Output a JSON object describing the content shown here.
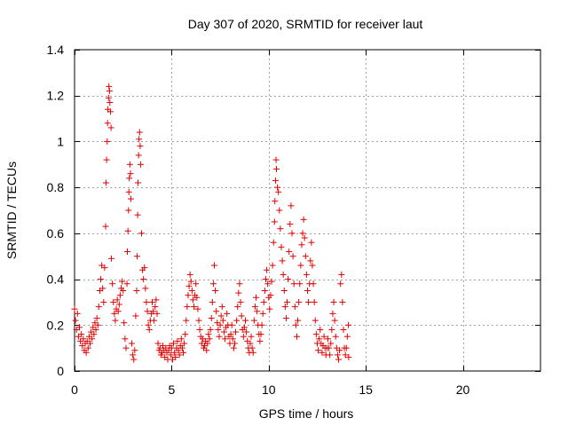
{
  "chart_data": {
    "type": "scatter",
    "title": "Day 307 of 2020, SRMTID for receiver laut",
    "xlabel": "GPS time / hours",
    "ylabel": "SRMTID / TECUs",
    "xlim": [
      0,
      24
    ],
    "ylim": [
      0,
      1.4
    ],
    "x_ticks": [
      0,
      5,
      10,
      15,
      20
    ],
    "x_tick_labels": [
      "0",
      "5",
      "10",
      "15",
      "20"
    ],
    "y_ticks": [
      0,
      0.2,
      0.4,
      0.6,
      0.8,
      1,
      1.2,
      1.4
    ],
    "y_tick_labels": [
      "0",
      "0.2",
      "0.4",
      "0.6",
      "0.8",
      "1",
      "1.2",
      "1.4"
    ],
    "grid": true,
    "marker": "+",
    "marker_color": "#e00000",
    "series": [
      {
        "name": "laut",
        "points": [
          [
            0.0,
            0.27
          ],
          [
            0.05,
            0.22
          ],
          [
            0.1,
            0.18
          ],
          [
            0.15,
            0.25
          ],
          [
            0.2,
            0.15
          ],
          [
            0.25,
            0.19
          ],
          [
            0.3,
            0.13
          ],
          [
            0.35,
            0.16
          ],
          [
            0.4,
            0.11
          ],
          [
            0.45,
            0.14
          ],
          [
            0.5,
            0.09
          ],
          [
            0.55,
            0.12
          ],
          [
            0.6,
            0.08
          ],
          [
            0.65,
            0.13
          ],
          [
            0.7,
            0.1
          ],
          [
            0.75,
            0.15
          ],
          [
            0.8,
            0.12
          ],
          [
            0.85,
            0.17
          ],
          [
            0.9,
            0.14
          ],
          [
            0.95,
            0.19
          ],
          [
            1.0,
            0.16
          ],
          [
            1.05,
            0.21
          ],
          [
            1.1,
            0.18
          ],
          [
            1.15,
            0.23
          ],
          [
            1.2,
            0.2
          ],
          [
            1.25,
            0.28
          ],
          [
            1.3,
            0.35
          ],
          [
            1.35,
            0.4
          ],
          [
            1.4,
            0.46
          ],
          [
            1.45,
            0.36
          ],
          [
            1.5,
            0.3
          ],
          [
            1.55,
            0.45
          ],
          [
            1.6,
            0.63
          ],
          [
            1.62,
            0.82
          ],
          [
            1.65,
            0.92
          ],
          [
            1.68,
            1.0
          ],
          [
            1.7,
            1.08
          ],
          [
            1.72,
            1.14
          ],
          [
            1.75,
            1.19
          ],
          [
            1.77,
            1.24
          ],
          [
            1.8,
            1.22
          ],
          [
            1.82,
            1.17
          ],
          [
            1.85,
            1.13
          ],
          [
            1.88,
            1.06
          ],
          [
            1.9,
            0.49
          ],
          [
            1.95,
            0.38
          ],
          [
            2.0,
            0.3
          ],
          [
            2.05,
            0.25
          ],
          [
            2.1,
            0.22
          ],
          [
            2.15,
            0.27
          ],
          [
            2.2,
            0.31
          ],
          [
            2.25,
            0.26
          ],
          [
            2.3,
            0.29
          ],
          [
            2.35,
            0.33
          ],
          [
            2.4,
            0.36
          ],
          [
            2.45,
            0.39
          ],
          [
            2.5,
            0.35
          ],
          [
            2.55,
            0.21
          ],
          [
            2.6,
            0.14
          ],
          [
            2.65,
            0.1
          ],
          [
            2.7,
            0.38
          ],
          [
            2.72,
            0.52
          ],
          [
            2.75,
            0.61
          ],
          [
            2.78,
            0.7
          ],
          [
            2.8,
            0.78
          ],
          [
            2.82,
            0.84
          ],
          [
            2.85,
            0.9
          ],
          [
            2.88,
            0.86
          ],
          [
            2.9,
            0.75
          ],
          [
            2.95,
            0.12
          ],
          [
            3.0,
            0.07
          ],
          [
            3.05,
            0.05
          ],
          [
            3.1,
            0.09
          ],
          [
            3.15,
            0.24
          ],
          [
            3.2,
            0.35
          ],
          [
            3.22,
            0.5
          ],
          [
            3.25,
            0.68
          ],
          [
            3.27,
            0.82
          ],
          [
            3.3,
            0.94
          ],
          [
            3.32,
            1.01
          ],
          [
            3.35,
            1.04
          ],
          [
            3.38,
            0.98
          ],
          [
            3.4,
            0.9
          ],
          [
            3.45,
            0.6
          ],
          [
            3.5,
            0.44
          ],
          [
            3.55,
            0.4
          ],
          [
            3.6,
            0.45
          ],
          [
            3.65,
            0.36
          ],
          [
            3.7,
            0.3
          ],
          [
            3.75,
            0.26
          ],
          [
            3.8,
            0.2
          ],
          [
            3.85,
            0.18
          ],
          [
            3.9,
            0.22
          ],
          [
            3.95,
            0.25
          ],
          [
            4.0,
            0.3
          ],
          [
            4.05,
            0.26
          ],
          [
            4.1,
            0.22
          ],
          [
            4.15,
            0.28
          ],
          [
            4.2,
            0.31
          ],
          [
            4.25,
            0.25
          ],
          [
            4.3,
            0.12
          ],
          [
            4.35,
            0.09
          ],
          [
            4.4,
            0.1
          ],
          [
            4.45,
            0.07
          ],
          [
            4.5,
            0.08
          ],
          [
            4.55,
            0.11
          ],
          [
            4.6,
            0.09
          ],
          [
            4.65,
            0.06
          ],
          [
            4.7,
            0.1
          ],
          [
            4.75,
            0.08
          ],
          [
            4.8,
            0.05
          ],
          [
            4.85,
            0.09
          ],
          [
            4.9,
            0.11
          ],
          [
            4.95,
            0.07
          ],
          [
            5.0,
            0.1
          ],
          [
            5.05,
            0.05
          ],
          [
            5.1,
            0.12
          ],
          [
            5.15,
            0.08
          ],
          [
            5.2,
            0.06
          ],
          [
            5.25,
            0.1
          ],
          [
            5.3,
            0.13
          ],
          [
            5.35,
            0.09
          ],
          [
            5.4,
            0.07
          ],
          [
            5.45,
            0.11
          ],
          [
            5.5,
            0.14
          ],
          [
            5.55,
            0.1
          ],
          [
            5.6,
            0.08
          ],
          [
            5.65,
            0.12
          ],
          [
            5.7,
            0.16
          ],
          [
            5.75,
            0.22
          ],
          [
            5.8,
            0.28
          ],
          [
            5.85,
            0.33
          ],
          [
            5.9,
            0.37
          ],
          [
            5.95,
            0.42
          ],
          [
            6.0,
            0.39
          ],
          [
            6.05,
            0.35
          ],
          [
            6.1,
            0.31
          ],
          [
            6.15,
            0.28
          ],
          [
            6.2,
            0.33
          ],
          [
            6.25,
            0.38
          ],
          [
            6.3,
            0.32
          ],
          [
            6.35,
            0.27
          ],
          [
            6.4,
            0.22
          ],
          [
            6.45,
            0.18
          ],
          [
            6.5,
            0.15
          ],
          [
            6.55,
            0.12
          ],
          [
            6.6,
            0.14
          ],
          [
            6.65,
            0.1
          ],
          [
            6.7,
            0.11
          ],
          [
            6.75,
            0.13
          ],
          [
            6.8,
            0.09
          ],
          [
            6.85,
            0.12
          ],
          [
            6.9,
            0.16
          ],
          [
            6.95,
            0.14
          ],
          [
            7.0,
            0.18
          ],
          [
            7.05,
            0.23
          ],
          [
            7.1,
            0.3
          ],
          [
            7.15,
            0.38
          ],
          [
            7.2,
            0.46
          ],
          [
            7.25,
            0.35
          ],
          [
            7.3,
            0.26
          ],
          [
            7.35,
            0.21
          ],
          [
            7.4,
            0.18
          ],
          [
            7.45,
            0.15
          ],
          [
            7.5,
            0.2
          ],
          [
            7.55,
            0.24
          ],
          [
            7.6,
            0.28
          ],
          [
            7.65,
            0.22
          ],
          [
            7.7,
            0.17
          ],
          [
            7.75,
            0.14
          ],
          [
            7.8,
            0.19
          ],
          [
            7.85,
            0.25
          ],
          [
            7.9,
            0.2
          ],
          [
            7.95,
            0.15
          ],
          [
            8.0,
            0.12
          ],
          [
            8.05,
            0.16
          ],
          [
            8.1,
            0.2
          ],
          [
            8.15,
            0.14
          ],
          [
            8.2,
            0.1
          ],
          [
            8.25,
            0.12
          ],
          [
            8.3,
            0.17
          ],
          [
            8.35,
            0.22
          ],
          [
            8.4,
            0.28
          ],
          [
            8.45,
            0.34
          ],
          [
            8.5,
            0.38
          ],
          [
            8.55,
            0.3
          ],
          [
            8.6,
            0.24
          ],
          [
            8.65,
            0.18
          ],
          [
            8.7,
            0.15
          ],
          [
            8.75,
            0.19
          ],
          [
            8.8,
            0.22
          ],
          [
            8.85,
            0.17
          ],
          [
            8.9,
            0.13
          ],
          [
            8.95,
            0.1
          ],
          [
            9.0,
            0.08
          ],
          [
            9.05,
            0.12
          ],
          [
            9.1,
            0.15
          ],
          [
            9.15,
            0.1
          ],
          [
            9.2,
            0.08
          ],
          [
            9.25,
            0.22
          ],
          [
            9.3,
            0.28
          ],
          [
            9.35,
            0.32
          ],
          [
            9.4,
            0.26
          ],
          [
            9.45,
            0.2
          ],
          [
            9.5,
            0.16
          ],
          [
            9.55,
            0.13
          ],
          [
            9.6,
            0.16
          ],
          [
            9.65,
            0.2
          ],
          [
            9.7,
            0.25
          ],
          [
            9.75,
            0.3
          ],
          [
            9.8,
            0.35
          ],
          [
            9.85,
            0.4
          ],
          [
            9.9,
            0.44
          ],
          [
            9.95,
            0.38
          ],
          [
            10.0,
            0.32
          ],
          [
            10.05,
            0.27
          ],
          [
            10.1,
            0.33
          ],
          [
            10.15,
            0.39
          ],
          [
            10.2,
            0.46
          ],
          [
            10.25,
            0.56
          ],
          [
            10.3,
            0.65
          ],
          [
            10.32,
            0.74
          ],
          [
            10.35,
            0.83
          ],
          [
            10.38,
            0.92
          ],
          [
            10.4,
            0.88
          ],
          [
            10.45,
            0.8
          ],
          [
            10.5,
            0.78
          ],
          [
            10.55,
            0.7
          ],
          [
            10.6,
            0.62
          ],
          [
            10.65,
            0.54
          ],
          [
            10.7,
            0.48
          ],
          [
            10.75,
            0.42
          ],
          [
            10.8,
            0.35
          ],
          [
            10.85,
            0.28
          ],
          [
            10.9,
            0.23
          ],
          [
            10.95,
            0.3
          ],
          [
            11.0,
            0.4
          ],
          [
            11.05,
            0.52
          ],
          [
            11.1,
            0.64
          ],
          [
            11.15,
            0.72
          ],
          [
            11.2,
            0.6
          ],
          [
            11.25,
            0.5
          ],
          [
            11.3,
            0.38
          ],
          [
            11.35,
            0.28
          ],
          [
            11.4,
            0.2
          ],
          [
            11.45,
            0.15
          ],
          [
            11.5,
            0.22
          ],
          [
            11.55,
            0.3
          ],
          [
            11.6,
            0.38
          ],
          [
            11.65,
            0.46
          ],
          [
            11.7,
            0.55
          ],
          [
            11.75,
            0.6
          ],
          [
            11.8,
            0.66
          ],
          [
            11.85,
            0.58
          ],
          [
            11.9,
            0.5
          ],
          [
            11.95,
            0.42
          ],
          [
            12.0,
            0.35
          ],
          [
            12.05,
            0.3
          ],
          [
            12.1,
            0.38
          ],
          [
            12.15,
            0.48
          ],
          [
            12.2,
            0.56
          ],
          [
            12.25,
            0.46
          ],
          [
            12.3,
            0.38
          ],
          [
            12.35,
            0.3
          ],
          [
            12.4,
            0.22
          ],
          [
            12.45,
            0.16
          ],
          [
            12.5,
            0.12
          ],
          [
            12.55,
            0.09
          ],
          [
            12.6,
            0.14
          ],
          [
            12.65,
            0.18
          ],
          [
            12.7,
            0.12
          ],
          [
            12.75,
            0.08
          ],
          [
            12.8,
            0.11
          ],
          [
            12.85,
            0.15
          ],
          [
            12.9,
            0.1
          ],
          [
            12.95,
            0.07
          ],
          [
            13.0,
            0.1
          ],
          [
            13.05,
            0.14
          ],
          [
            13.1,
            0.1
          ],
          [
            13.15,
            0.07
          ],
          [
            13.2,
            0.12
          ],
          [
            13.25,
            0.18
          ],
          [
            13.3,
            0.25
          ],
          [
            13.35,
            0.3
          ],
          [
            13.4,
            0.22
          ],
          [
            13.45,
            0.15
          ],
          [
            13.5,
            0.1
          ],
          [
            13.55,
            0.07
          ],
          [
            13.6,
            0.05
          ],
          [
            13.65,
            0.09
          ],
          [
            13.7,
            0.38
          ],
          [
            13.75,
            0.42
          ],
          [
            13.8,
            0.3
          ],
          [
            13.85,
            0.18
          ],
          [
            13.9,
            0.1
          ],
          [
            13.95,
            0.07
          ],
          [
            14.0,
            0.1
          ],
          [
            14.05,
            0.15
          ],
          [
            14.1,
            0.2
          ],
          [
            14.12,
            0.06
          ]
        ]
      }
    ]
  }
}
